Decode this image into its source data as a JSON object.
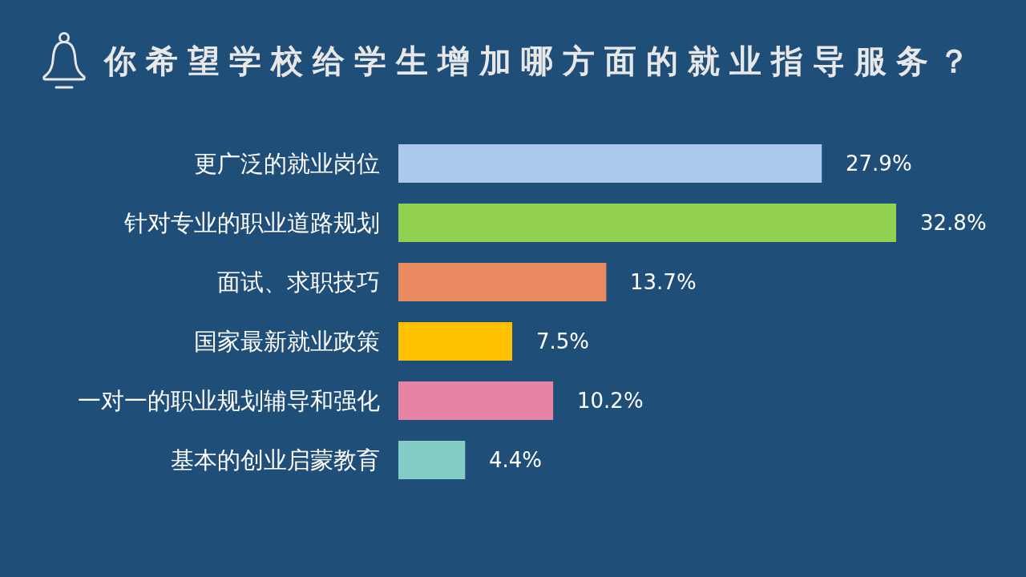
{
  "chart_data": {
    "type": "bar",
    "orientation": "horizontal",
    "title": "你希望学校给学生增加哪方面的就业指导服务？",
    "categories": [
      "更广泛的就业岗位",
      "针对专业的职业道路规划",
      "面试、求职技巧",
      "国家最新就业政策",
      "一对一的职业规划辅导和强化",
      "基本的创业启蒙教育"
    ],
    "values": [
      27.9,
      32.8,
      13.7,
      7.5,
      10.2,
      4.4
    ],
    "value_labels": [
      "27.9%",
      "32.8%",
      "13.7%",
      "7.5%",
      "10.2%",
      "4.4%"
    ],
    "colors": [
      "#adc8ed",
      "#92d050",
      "#e98a61",
      "#ffc000",
      "#e784a4",
      "#84ccc6"
    ],
    "tick_labels": "y"
  }
}
